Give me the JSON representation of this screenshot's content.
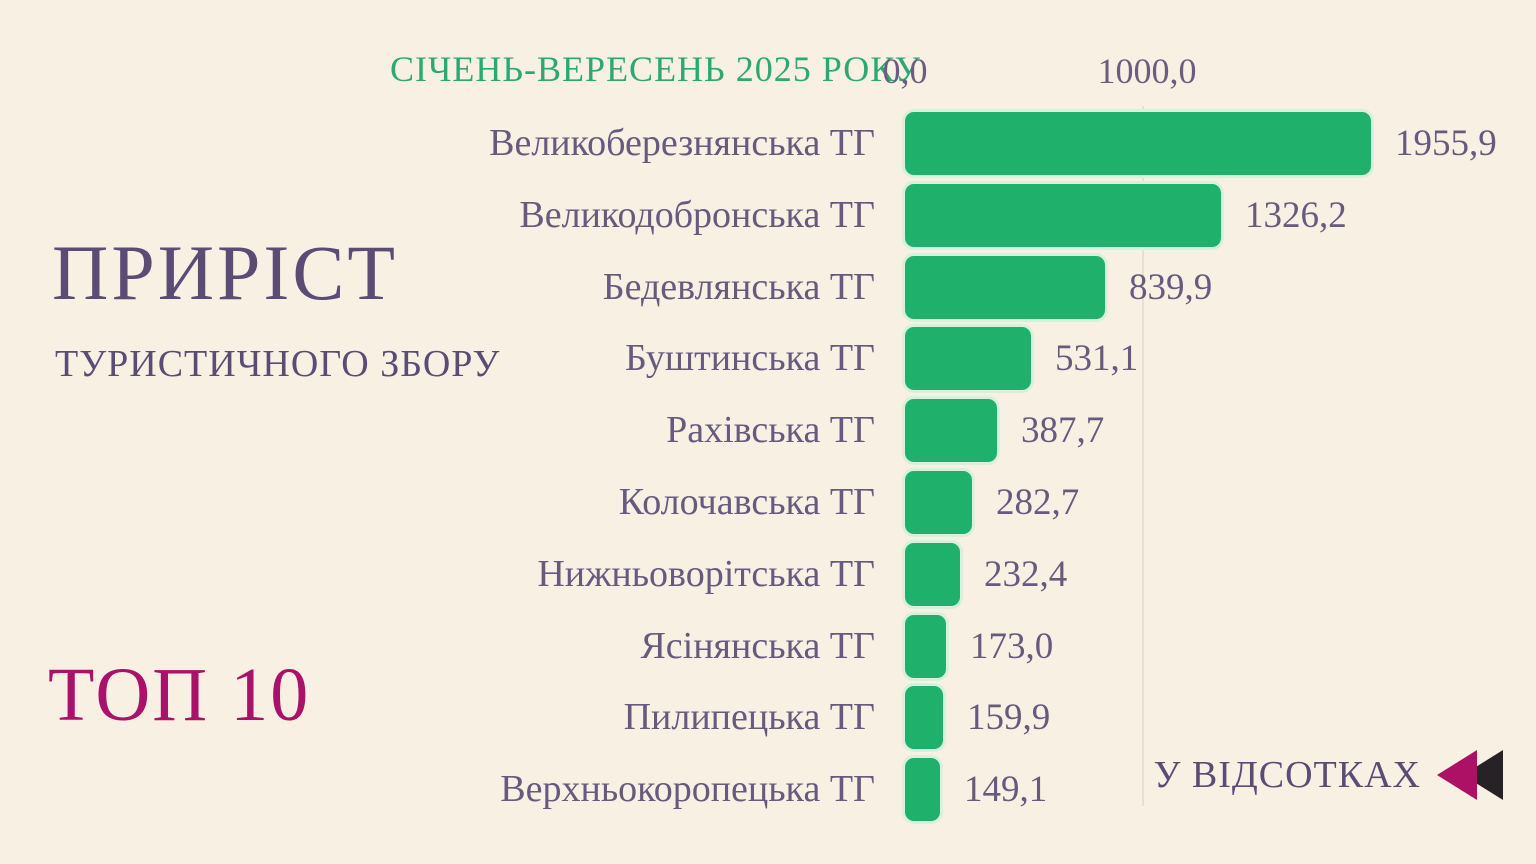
{
  "header": {
    "period": "СІЧЕНЬ-ВЕРЕСЕНЬ 2025 РОКУ"
  },
  "left_panel": {
    "title": "ПРИРІСТ",
    "subtitle": "ТУРИСТИЧНОГО ЗБОРУ",
    "top_badge": "ТОП 10"
  },
  "axis": {
    "tick_labels": [
      "0,0",
      "1000,0"
    ],
    "tick_values": [
      0,
      1000
    ]
  },
  "footer": {
    "units_label": "У ВІДСОТКАХ"
  },
  "chart_data": {
    "type": "bar",
    "orientation": "horizontal",
    "title": "ПРИРІСТ ТУРИСТИЧНОГО ЗБОРУ — ТОП 10",
    "subtitle": "СІЧЕНЬ-ВЕРЕСЕНЬ 2025 РОКУ",
    "units": "У ВІДСОТКАХ",
    "categories": [
      "Великоберезнянська ТГ",
      "Великодобронська ТГ",
      "Бедевлянська ТГ",
      "Буштинська ТГ",
      "Рахівська ТГ",
      "Колочавська ТГ",
      "Нижньоворітська ТГ",
      "Ясінянська ТГ",
      "Пилипецька ТГ",
      "Верхньокоропецька ТГ"
    ],
    "values": [
      1955.9,
      1326.2,
      839.9,
      531.1,
      387.7,
      282.7,
      232.4,
      173.0,
      159.9,
      149.1
    ],
    "value_labels": [
      "1955,9",
      "1326,2",
      "839,9",
      "531,1",
      "387,7",
      "282,7",
      "232,4",
      "173,0",
      "159,9",
      "149,1"
    ],
    "xlim": [
      0,
      2000
    ],
    "x_ticks": [
      0,
      1000
    ],
    "grid": "single faint vertical gridline at 1000",
    "legend": false,
    "bar_color": "#1fb06b",
    "bar_outline_color": "#d9f0dd"
  },
  "colors": {
    "background": "#f8f0e3",
    "title_purple": "#5b4c75",
    "label_purple": "#685a7e",
    "header_green": "#2ca874",
    "badge_magenta": "#a9116b",
    "icon_magenta": "#ad1166",
    "icon_black": "#262226",
    "gridline": "#e9e0d2"
  }
}
